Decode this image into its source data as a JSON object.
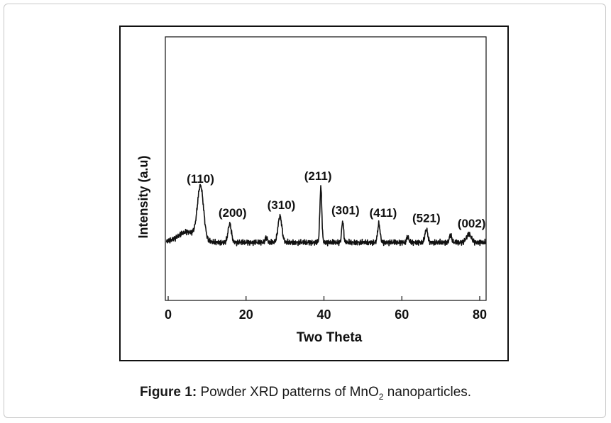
{
  "chart_data": {
    "type": "line",
    "xlabel": "Two Theta",
    "ylabel": "Intensity (a.u)",
    "xlim": [
      0,
      82
    ],
    "ylim": [
      0,
      100
    ],
    "x_ticks": [
      0,
      20,
      40,
      60,
      80
    ],
    "y_ticks_labeled": false,
    "grid": false,
    "legend": "none",
    "line_color": "#111111",
    "baseline": 22,
    "peaks": [
      {
        "label": "(110)",
        "x": 8.3,
        "height": 20
      },
      {
        "label": "(200)",
        "x": 15.8,
        "height": 7
      },
      {
        "label": "(310)",
        "x": 28.7,
        "height": 10
      },
      {
        "label": "(211)",
        "x": 39.2,
        "height": 21
      },
      {
        "label": "(301)",
        "x": 44.8,
        "height": 8
      },
      {
        "label": "(411)",
        "x": 54.1,
        "height": 7
      },
      {
        "label": "(521)",
        "x": 66.3,
        "height": 5
      },
      {
        "label": "(002)",
        "x": 77.2,
        "height": 3
      }
    ],
    "minor_peaks": [
      {
        "x": 25.2,
        "height": 2
      },
      {
        "x": 61.5,
        "height": 2
      },
      {
        "x": 72.5,
        "height": 3
      }
    ]
  },
  "caption": {
    "lead": "Figure 1:",
    "text_before_subscript": "Powder XRD patterns of MnO",
    "subscript": "2",
    "text_after_subscript": " nanoparticles."
  }
}
